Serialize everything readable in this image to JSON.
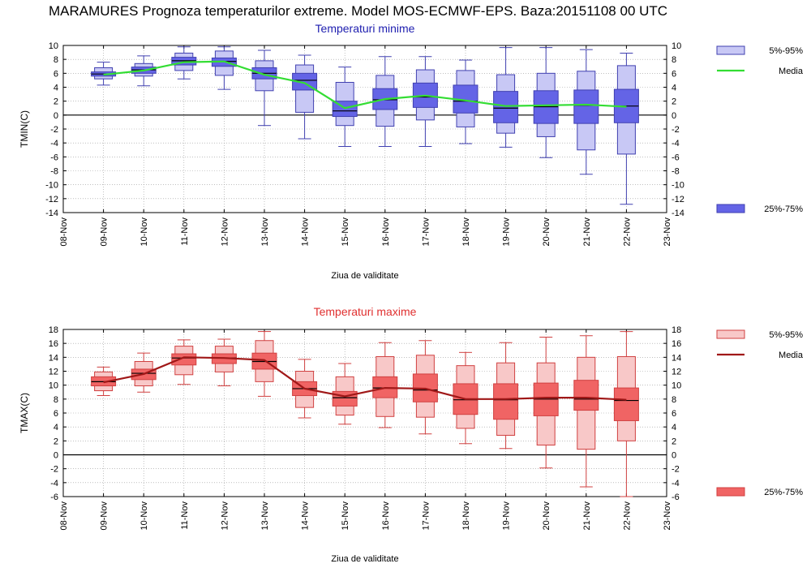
{
  "title": "MARAMURES  Prognoza temperaturilor extreme.  Model MOS-ECMWF-EPS. Baza:20151108 00 UTC",
  "chart_data": [
    {
      "type": "box",
      "title": "Temperaturi minime",
      "ylabel": "TMIN(C)",
      "xlabel": "Ziua de validitate",
      "categories": [
        "08-Nov",
        "09-Nov",
        "10-Nov",
        "11-Nov",
        "12-Nov",
        "13-Nov",
        "14-Nov",
        "15-Nov",
        "16-Nov",
        "17-Nov",
        "18-Nov",
        "19-Nov",
        "20-Nov",
        "21-Nov",
        "22-Nov",
        "23-Nov"
      ],
      "ylim": [
        -14,
        10
      ],
      "yticks": [
        10,
        8,
        6,
        4,
        2,
        0,
        -2,
        -4,
        -6,
        -8,
        -10,
        -12,
        -14
      ],
      "grid": true,
      "colors": {
        "title": "#2020b0",
        "fill_outer": "#c8c8f5",
        "fill_inner": "#6464e6",
        "stroke": "#4040b0",
        "median_line": "#33dd33"
      },
      "legend": [
        {
          "label": "5%-95%",
          "kind": "outer_range",
          "position": "top-right"
        },
        {
          "label": "Media",
          "kind": "line",
          "position": "top-right"
        },
        {
          "label": "25%-75%",
          "kind": "inner_range",
          "position": "bottom-right"
        }
      ],
      "boxes": [
        {
          "x": "09-Nov",
          "whisker_low": 4.3,
          "p5": 5.2,
          "q1": 5.6,
          "median": 5.9,
          "q3": 6.2,
          "p95": 6.8,
          "whisker_high": 7.6
        },
        {
          "x": "10-Nov",
          "whisker_low": 4.2,
          "p5": 5.6,
          "q1": 6.0,
          "median": 6.5,
          "q3": 6.9,
          "p95": 7.4,
          "whisker_high": 8.5
        },
        {
          "x": "11-Nov",
          "whisker_low": 5.2,
          "p5": 6.4,
          "q1": 7.2,
          "median": 7.8,
          "q3": 8.3,
          "p95": 8.9,
          "whisker_high": 9.8
        },
        {
          "x": "12-Nov",
          "whisker_low": 3.7,
          "p5": 5.7,
          "q1": 7.0,
          "median": 7.7,
          "q3": 8.2,
          "p95": 9.2,
          "whisker_high": 9.8
        },
        {
          "x": "13-Nov",
          "whisker_low": -1.5,
          "p5": 3.5,
          "q1": 5.2,
          "median": 6.0,
          "q3": 6.8,
          "p95": 7.8,
          "whisker_high": 9.3
        },
        {
          "x": "14-Nov",
          "whisker_low": -3.4,
          "p5": 0.4,
          "q1": 3.6,
          "median": 5.0,
          "q3": 6.0,
          "p95": 7.2,
          "whisker_high": 8.6
        },
        {
          "x": "15-Nov",
          "whisker_low": -4.5,
          "p5": -1.5,
          "q1": -0.2,
          "median": 0.6,
          "q3": 2.0,
          "p95": 4.7,
          "whisker_high": 6.9
        },
        {
          "x": "16-Nov",
          "whisker_low": -4.5,
          "p5": -1.6,
          "q1": 0.8,
          "median": 2.2,
          "q3": 3.8,
          "p95": 5.7,
          "whisker_high": 8.4
        },
        {
          "x": "17-Nov",
          "whisker_low": -4.5,
          "p5": -0.7,
          "q1": 1.1,
          "median": 2.6,
          "q3": 4.6,
          "p95": 6.5,
          "whisker_high": 8.4
        },
        {
          "x": "18-Nov",
          "whisker_low": -4.1,
          "p5": -1.7,
          "q1": 0.3,
          "median": 2.0,
          "q3": 4.3,
          "p95": 6.4,
          "whisker_high": 7.9
        },
        {
          "x": "19-Nov",
          "whisker_low": -4.6,
          "p5": -2.6,
          "q1": -1.1,
          "median": 1.0,
          "q3": 3.4,
          "p95": 5.8,
          "whisker_high": 9.7
        },
        {
          "x": "20-Nov",
          "whisker_low": -6.1,
          "p5": -3.1,
          "q1": -1.2,
          "median": 1.2,
          "q3": 3.5,
          "p95": 6.0,
          "whisker_high": 9.7
        },
        {
          "x": "21-Nov",
          "whisker_low": -8.5,
          "p5": -5.0,
          "q1": -1.2,
          "median": 1.4,
          "q3": 3.6,
          "p95": 6.3,
          "whisker_high": 9.4
        },
        {
          "x": "22-Nov",
          "whisker_low": -12.8,
          "p5": -5.6,
          "q1": -1.1,
          "median": 1.3,
          "q3": 3.7,
          "p95": 7.1,
          "whisker_high": 8.9
        }
      ],
      "media_line": {
        "x": [
          "09-Nov",
          "10-Nov",
          "11-Nov",
          "12-Nov",
          "13-Nov",
          "14-Nov",
          "15-Nov",
          "16-Nov",
          "17-Nov",
          "18-Nov",
          "19-Nov",
          "20-Nov",
          "21-Nov",
          "22-Nov"
        ],
        "y": [
          5.8,
          6.4,
          7.6,
          7.7,
          5.8,
          4.6,
          1.0,
          2.3,
          2.8,
          2.1,
          1.3,
          1.4,
          1.5,
          1.2
        ]
      }
    },
    {
      "type": "box",
      "title": "Temperaturi maxime",
      "ylabel": "TMAX(C)",
      "xlabel": "Ziua de validitate",
      "categories": [
        "08-Nov",
        "09-Nov",
        "10-Nov",
        "11-Nov",
        "12-Nov",
        "13-Nov",
        "14-Nov",
        "15-Nov",
        "16-Nov",
        "17-Nov",
        "18-Nov",
        "19-Nov",
        "20-Nov",
        "21-Nov",
        "22-Nov",
        "23-Nov"
      ],
      "ylim": [
        -6,
        18
      ],
      "yticks": [
        18,
        16,
        14,
        12,
        10,
        8,
        6,
        4,
        2,
        0,
        -2,
        -4,
        -6
      ],
      "grid": true,
      "colors": {
        "title": "#e03030",
        "fill_outer": "#f8c8c8",
        "fill_inner": "#f06464",
        "stroke": "#d04040",
        "median_line": "#a01818"
      },
      "legend": [
        {
          "label": "5%-95%",
          "kind": "outer_range",
          "position": "top-right"
        },
        {
          "label": "Media",
          "kind": "line",
          "position": "top-right"
        },
        {
          "label": "25%-75%",
          "kind": "inner_range",
          "position": "bottom-right"
        }
      ],
      "boxes": [
        {
          "x": "09-Nov",
          "whisker_low": 8.5,
          "p5": 9.2,
          "q1": 9.9,
          "median": 10.5,
          "q3": 11.2,
          "p95": 11.9,
          "whisker_high": 12.6
        },
        {
          "x": "10-Nov",
          "whisker_low": 9.0,
          "p5": 9.9,
          "q1": 10.8,
          "median": 11.7,
          "q3": 12.3,
          "p95": 13.4,
          "whisker_high": 14.6
        },
        {
          "x": "11-Nov",
          "whisker_low": 10.1,
          "p5": 11.5,
          "q1": 12.9,
          "median": 13.9,
          "q3": 14.5,
          "p95": 15.6,
          "whisker_high": 16.5
        },
        {
          "x": "12-Nov",
          "whisker_low": 9.9,
          "p5": 11.9,
          "q1": 13.1,
          "median": 13.9,
          "q3": 14.5,
          "p95": 15.6,
          "whisker_high": 16.6
        },
        {
          "x": "13-Nov",
          "whisker_low": 8.4,
          "p5": 10.5,
          "q1": 12.3,
          "median": 13.4,
          "q3": 14.6,
          "p95": 16.4,
          "whisker_high": 17.7
        },
        {
          "x": "14-Nov",
          "whisker_low": 5.3,
          "p5": 6.8,
          "q1": 8.5,
          "median": 9.5,
          "q3": 10.5,
          "p95": 12.0,
          "whisker_high": 13.7
        },
        {
          "x": "15-Nov",
          "whisker_low": 4.4,
          "p5": 5.7,
          "q1": 7.0,
          "median": 8.2,
          "q3": 9.1,
          "p95": 11.2,
          "whisker_high": 13.1
        },
        {
          "x": "16-Nov",
          "whisker_low": 3.9,
          "p5": 5.5,
          "q1": 8.2,
          "median": 9.6,
          "q3": 11.2,
          "p95": 14.1,
          "whisker_high": 16.1
        },
        {
          "x": "17-Nov",
          "whisker_low": 3.0,
          "p5": 5.4,
          "q1": 7.6,
          "median": 9.3,
          "q3": 11.6,
          "p95": 14.3,
          "whisker_high": 16.4
        },
        {
          "x": "18-Nov",
          "whisker_low": 1.6,
          "p5": 3.8,
          "q1": 5.8,
          "median": 7.9,
          "q3": 10.2,
          "p95": 12.8,
          "whisker_high": 14.7
        },
        {
          "x": "19-Nov",
          "whisker_low": 0.9,
          "p5": 2.8,
          "q1": 5.1,
          "median": 7.9,
          "q3": 10.2,
          "p95": 13.2,
          "whisker_high": 16.1
        },
        {
          "x": "20-Nov",
          "whisker_low": -1.9,
          "p5": 1.4,
          "q1": 5.6,
          "median": 8.0,
          "q3": 10.3,
          "p95": 13.2,
          "whisker_high": 16.9
        },
        {
          "x": "21-Nov",
          "whisker_low": -4.6,
          "p5": 0.8,
          "q1": 6.4,
          "median": 8.0,
          "q3": 10.7,
          "p95": 14.0,
          "whisker_high": 17.1
        },
        {
          "x": "22-Nov",
          "whisker_low": -6.0,
          "p5": 2.0,
          "q1": 4.9,
          "median": 7.8,
          "q3": 9.6,
          "p95": 14.1,
          "whisker_high": 17.7
        }
      ],
      "media_line": {
        "x": [
          "09-Nov",
          "10-Nov",
          "11-Nov",
          "12-Nov",
          "13-Nov",
          "14-Nov",
          "15-Nov",
          "16-Nov",
          "17-Nov",
          "18-Nov",
          "19-Nov",
          "20-Nov",
          "21-Nov",
          "22-Nov"
        ],
        "y": [
          10.4,
          11.6,
          14.0,
          13.9,
          13.6,
          9.5,
          8.4,
          9.6,
          9.5,
          8.0,
          8.0,
          8.2,
          8.2,
          7.9
        ]
      }
    }
  ]
}
